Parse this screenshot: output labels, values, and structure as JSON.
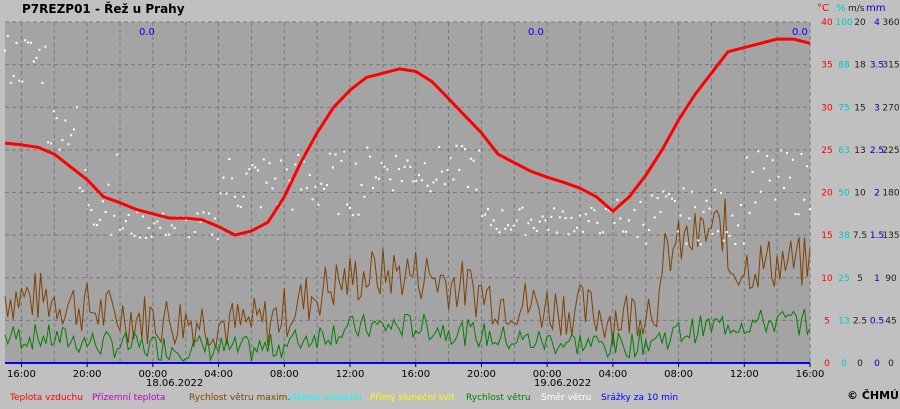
{
  "title": "P7REZP01 - Řež u Prahy",
  "logo": "© ČHMÚ",
  "axis_units": [
    {
      "text": "°C",
      "color": "#ff0000"
    },
    {
      "text": "%",
      "color": "#00c8c8"
    },
    {
      "text": "m/s",
      "color": "#202020"
    },
    {
      "text": "mm",
      "color": "#0000c0"
    }
  ],
  "precip_values": [
    "0.0",
    "0.0",
    "0.0"
  ],
  "date_labels": [
    "18.06.2022",
    "19.06.2022"
  ],
  "legend": [
    {
      "label": "Teplota vzduchu",
      "color": "#ff0000"
    },
    {
      "label": "Přízemní teplota",
      "color": "#c000c0"
    },
    {
      "label": "Rychlost větru maxim.",
      "color": "#804000"
    },
    {
      "label": "Vlhkost vzduchu",
      "color": "#00ffff"
    },
    {
      "label": "Přímý sluneční svit",
      "color": "#ffff00"
    },
    {
      "label": "Rychlost větru",
      "color": "#008000"
    },
    {
      "label": "Směr větru",
      "color": "#ffffff"
    },
    {
      "label": "Srážky za 10 min",
      "color": "#0000ff"
    }
  ],
  "chart_data": {
    "type": "line",
    "title": "P7REZP01 - Řež u Prahy",
    "x_tick_labels": [
      "16:00",
      "20:00",
      "00:00",
      "04:00",
      "08:00",
      "12:00",
      "16:00",
      "20:00",
      "00:00",
      "04:00",
      "08:00",
      "12:00",
      "16:00"
    ],
    "x_unit": "hour offset from 18.06.2022 15:00",
    "xlim": [
      0,
      49
    ],
    "grid": true,
    "axes": [
      {
        "name": "Teplota vzduchu",
        "unit": "°C",
        "color": "#ff0000",
        "ticks": [
          "0",
          "5",
          "10",
          "15",
          "20",
          "25",
          "30",
          "35",
          "40"
        ]
      },
      {
        "name": "Vlhkost vzduchu",
        "unit": "%",
        "color": "#00c8c8",
        "ticks": [
          "0",
          "13",
          "25",
          "38",
          "50",
          "63",
          "75",
          "88",
          "100"
        ]
      },
      {
        "name": "Rychlost větru",
        "unit": "m/s",
        "color": "#202020",
        "ticks": [
          "0",
          "2.5",
          "5",
          "7.5",
          "10",
          "13",
          "15",
          "18",
          "20"
        ]
      },
      {
        "name": "Srážky za 10 min",
        "unit": "mm",
        "color": "#0000c0",
        "ticks": [
          "0",
          "0.5",
          "1",
          "1.5",
          "2",
          "2.5",
          "3",
          "3.5",
          "4"
        ]
      },
      {
        "name": "Směr větru",
        "unit": "°",
        "color": "#202020",
        "ticks": [
          "0",
          "45",
          "90",
          "135",
          "180",
          "225",
          "270",
          "315",
          "360"
        ]
      }
    ],
    "series": [
      {
        "name": "Teplota vzduchu",
        "unit": "°C",
        "color": "#ff0000",
        "x": [
          0,
          1,
          2,
          3,
          4,
          5,
          6,
          7,
          8,
          9,
          10,
          11,
          12,
          13,
          14,
          15,
          16,
          17,
          18,
          19,
          20,
          21,
          22,
          23,
          24,
          25,
          26,
          27,
          28,
          29,
          30,
          31,
          32,
          33,
          34,
          35,
          36,
          37,
          38,
          39,
          40,
          41,
          42,
          43,
          44,
          45,
          46,
          47,
          48,
          49
        ],
        "y": [
          25.8,
          25.6,
          25.3,
          24.5,
          23.0,
          21.5,
          19.5,
          18.8,
          18.0,
          17.5,
          17.0,
          17.0,
          16.8,
          16.0,
          15.0,
          15.5,
          16.5,
          19.5,
          23.5,
          27.0,
          30.0,
          32.0,
          33.5,
          34.0,
          34.5,
          34.2,
          33.0,
          31.0,
          29.0,
          27.0,
          24.5,
          23.5,
          22.5,
          21.8,
          21.2,
          20.5,
          19.5,
          17.8,
          19.5,
          22.0,
          25.0,
          28.5,
          31.5,
          34.0,
          36.5,
          37.0,
          37.5,
          38.0,
          38.0,
          37.5
        ]
      },
      {
        "name": "Rychlost větru maxim.",
        "unit": "m/s",
        "color": "#804000",
        "x": [
          0,
          49
        ],
        "y_range": [
          0.5,
          11
        ]
      },
      {
        "name": "Rychlost větru",
        "unit": "m/s",
        "color": "#008000",
        "x": [
          0,
          49
        ],
        "y_range": [
          0.1,
          6
        ]
      },
      {
        "name": "Směr větru",
        "unit": "°",
        "color": "#ffffff",
        "x": [
          0,
          49
        ],
        "y_range": [
          0,
          360
        ]
      },
      {
        "name": "Srážky za 10 min",
        "unit": "mm",
        "color": "#0000ff",
        "x": [
          0,
          49
        ],
        "y": [
          0,
          0
        ]
      }
    ]
  }
}
